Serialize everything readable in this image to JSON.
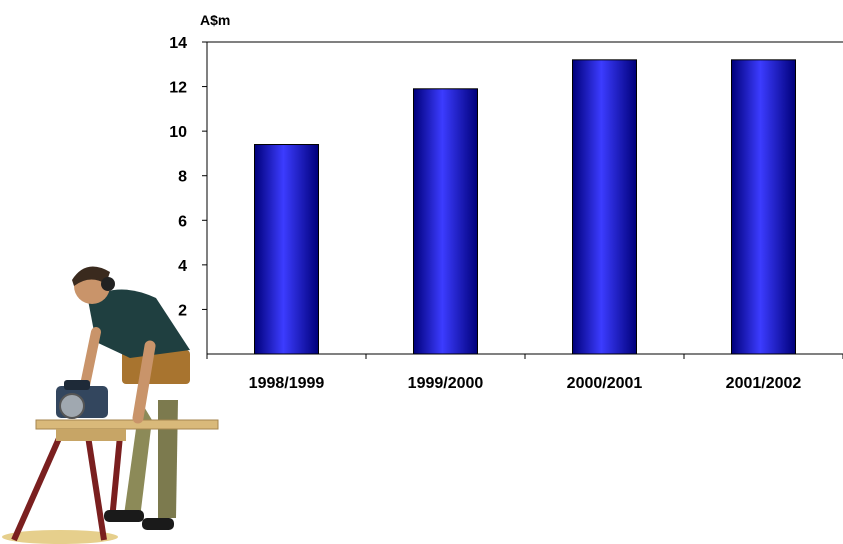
{
  "chart_data": {
    "type": "bar",
    "title": "",
    "ylabel": "A$m",
    "xlabel": "",
    "categories": [
      "1998/1999",
      "1999/2000",
      "2000/2001",
      "2001/2002"
    ],
    "values": [
      9.4,
      11.9,
      13.2,
      13.2
    ],
    "ylim": [
      0,
      14
    ],
    "yticks": [
      2,
      4,
      6,
      8,
      10,
      12,
      14
    ],
    "grid": false,
    "legend": "none",
    "bar_color": "#0000ff",
    "bar_highlight_color": "#3c3cff",
    "bar_shadow_color": "#00007a"
  },
  "illustration": {
    "icon": "worker-sawing-wood-icon"
  }
}
